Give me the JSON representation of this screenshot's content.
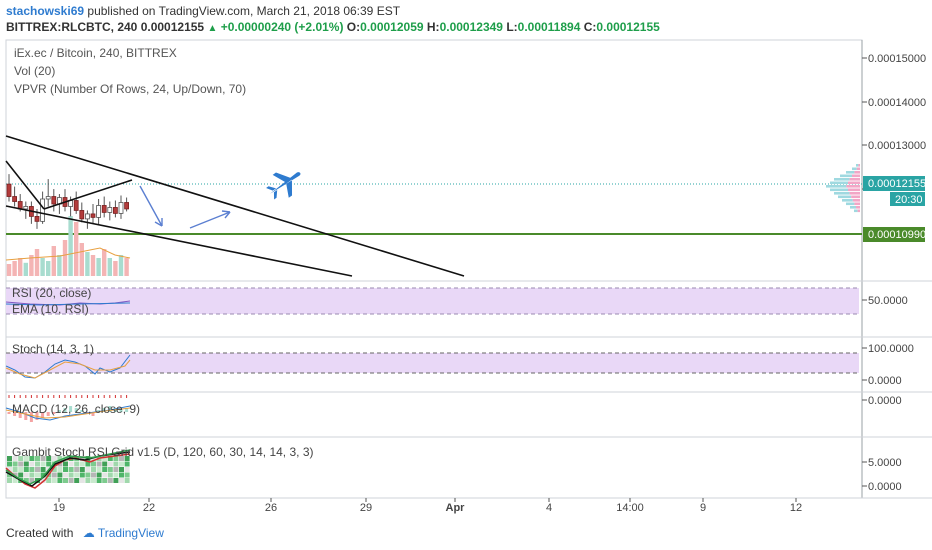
{
  "header": {
    "user": "stachowski69",
    "published": "published on TradingView.com, March 21, 2018 06:39 EST",
    "symbol": "BITTREX:RLCBTC, 240",
    "last": "0.00012155",
    "change": "+0.00000240 (+2.01%)",
    "o_label": "O:",
    "o": "0.00012059",
    "h_label": "H:",
    "h": "0.00012349",
    "l_label": "L:",
    "l": "0.00011894",
    "c_label": "C:",
    "c": "0.00012155"
  },
  "legend": {
    "title": "iEx.ec / Bitcoin, 240, BITTREX",
    "vol": "Vol (20)",
    "vpvr": "VPVR (Number Of Rows, 24, Up/Down, 70)"
  },
  "indicators": {
    "rsi": "RSI (20, close)",
    "ema": "EMA (10, RSI)",
    "stoch": "Stoch (14, 3, 1)",
    "macd": "MACD (12, 26, close, 9)",
    "gambit": "Gambit Stoch RSI Grid v1.5 (D, 120, 60, 30, 14, 14, 3, 3)"
  },
  "chart_data": {
    "type": "candlestick",
    "price_axis": [
      "0.00015000",
      "0.00014000",
      "0.00013000",
      "0.00012000"
    ],
    "price_range": [
      0.000107,
      0.0001555
    ],
    "current_price_tag": "0.00012155",
    "countdown_tag": "20:30",
    "support_line_tag": "0.00010990",
    "support_level": 0.0001099,
    "x_ticks": [
      "19",
      "22",
      "26",
      "29",
      "Apr",
      "4",
      "14:00",
      "9",
      "12"
    ],
    "candles": [
      {
        "o": 0.0001265,
        "h": 0.0001285,
        "l": 0.000123,
        "c": 0.000124
      },
      {
        "o": 0.000124,
        "h": 0.000126,
        "l": 0.000122,
        "c": 0.000123
      },
      {
        "o": 0.000123,
        "h": 0.0001245,
        "l": 0.000121,
        "c": 0.0001215
      },
      {
        "o": 0.0001215,
        "h": 0.000123,
        "l": 0.0001195,
        "c": 0.000122
      },
      {
        "o": 0.000122,
        "h": 0.000123,
        "l": 0.0001185,
        "c": 0.00012
      },
      {
        "o": 0.00012,
        "h": 0.0001215,
        "l": 0.0001175,
        "c": 0.000119
      },
      {
        "o": 0.000119,
        "h": 0.000125,
        "l": 0.0001185,
        "c": 0.0001235
      },
      {
        "o": 0.0001235,
        "h": 0.0001275,
        "l": 0.000122,
        "c": 0.000124
      },
      {
        "o": 0.000124,
        "h": 0.0001255,
        "l": 0.000121,
        "c": 0.0001225
      },
      {
        "o": 0.0001225,
        "h": 0.0001245,
        "l": 0.0001205,
        "c": 0.0001238
      },
      {
        "o": 0.0001238,
        "h": 0.0001255,
        "l": 0.000121,
        "c": 0.000122
      },
      {
        "o": 0.000122,
        "h": 0.000124,
        "l": 0.00012,
        "c": 0.0001232
      },
      {
        "o": 0.0001232,
        "h": 0.000125,
        "l": 0.0001205,
        "c": 0.0001212
      },
      {
        "o": 0.0001212,
        "h": 0.0001228,
        "l": 0.0001188,
        "c": 0.0001195
      },
      {
        "o": 0.0001195,
        "h": 0.0001212,
        "l": 0.0001175,
        "c": 0.0001205
      },
      {
        "o": 0.0001205,
        "h": 0.0001225,
        "l": 0.0001185,
        "c": 0.0001198
      },
      {
        "o": 0.0001198,
        "h": 0.0001235,
        "l": 0.0001182,
        "c": 0.0001222
      },
      {
        "o": 0.0001222,
        "h": 0.000124,
        "l": 0.0001198,
        "c": 0.0001208
      },
      {
        "o": 0.0001208,
        "h": 0.000123,
        "l": 0.0001192,
        "c": 0.0001218
      },
      {
        "o": 0.0001218,
        "h": 0.0001232,
        "l": 0.0001198,
        "c": 0.0001206
      },
      {
        "o": 0.0001206,
        "h": 0.0001242,
        "l": 0.0001195,
        "c": 0.0001228
      },
      {
        "o": 0.0001228,
        "h": 0.0001238,
        "l": 0.000121,
        "c": 0.0001215
      }
    ],
    "volume": [
      0.2,
      0.25,
      0.3,
      0.22,
      0.35,
      0.45,
      0.3,
      0.25,
      0.5,
      0.35,
      0.6,
      1.0,
      0.9,
      0.55,
      0.4,
      0.35,
      0.3,
      0.45,
      0.3,
      0.25,
      0.35,
      0.3
    ],
    "rsi_axis": "50.0000",
    "stoch_axis": [
      "100.0000",
      "0.0000"
    ],
    "macd_axis": "0.0000",
    "gambit_axis": [
      "5.0000",
      "0.0000"
    ]
  }
}
